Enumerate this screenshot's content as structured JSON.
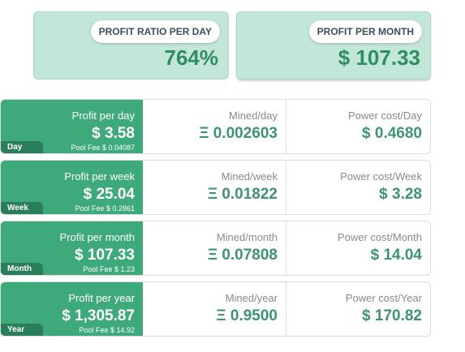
{
  "summary": {
    "ratio": {
      "label": "PROFIT RATIO PER DAY",
      "value": "764%"
    },
    "monthly": {
      "label": "PROFIT PER MONTH",
      "value": "$ 107.33"
    }
  },
  "rows": [
    {
      "tag": "Day",
      "profit_label": "Profit per day",
      "profit_value": "$ 3.58",
      "pool_fee": "Pool Fee $ 0.04087",
      "mined_label": "Mined/day",
      "mined_value": "Ξ 0.002603",
      "power_label": "Power cost/Day",
      "power_value": "$ 0.4680"
    },
    {
      "tag": "Week",
      "profit_label": "Profit per week",
      "profit_value": "$ 25.04",
      "pool_fee": "Pool Fee $ 0.2861",
      "mined_label": "Mined/week",
      "mined_value": "Ξ 0.01822",
      "power_label": "Power cost/Week",
      "power_value": "$ 3.28"
    },
    {
      "tag": "Month",
      "profit_label": "Profit per month",
      "profit_value": "$ 107.33",
      "pool_fee": "Pool Fee $ 1.23",
      "mined_label": "Mined/month",
      "mined_value": "Ξ 0.07808",
      "power_label": "Power cost/Month",
      "power_value": "$ 14.04"
    },
    {
      "tag": "Year",
      "profit_label": "Profit per year",
      "profit_value": "$ 1,305.87",
      "pool_fee": "Pool Fee $ 14.92",
      "mined_label": "Mined/year",
      "mined_value": "Ξ 0.9500",
      "power_label": "Power cost/Year",
      "power_value": "$ 170.82"
    }
  ]
}
